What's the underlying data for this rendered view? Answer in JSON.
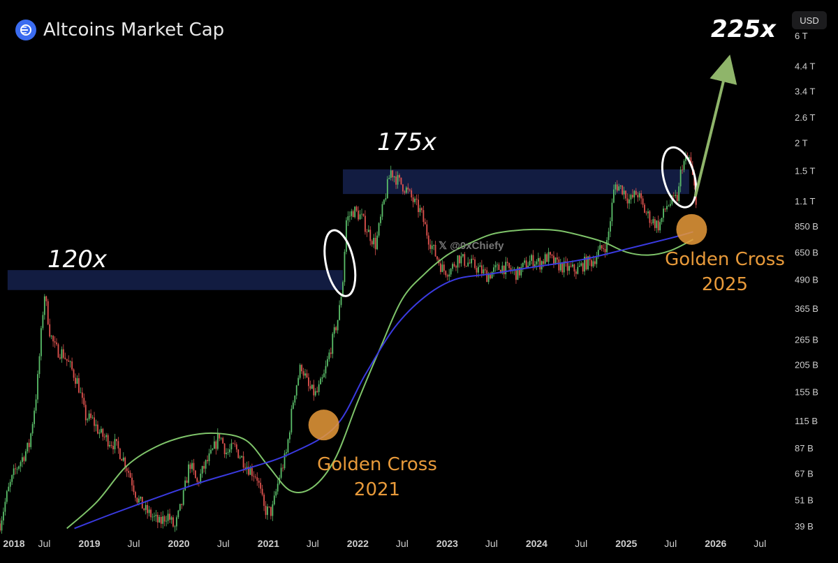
{
  "header": {
    "title": "Altcoins Market Cap",
    "logo_icon": "altcoins-logo-icon"
  },
  "currency_button": {
    "label": "USD"
  },
  "watermark": {
    "icon": "x-logo-icon",
    "text": "𝕏  @0xChiefy"
  },
  "annotations": {
    "multiple_2018": "120x",
    "multiple_2021": "175x",
    "multiple_target": "225x",
    "golden_cross_2021": [
      "Golden Cross",
      "2021"
    ],
    "golden_cross_2025": [
      "Golden Cross",
      "2025"
    ]
  },
  "colors": {
    "background": "#000000",
    "candle_up": "#5bbf6a",
    "candle_down": "#e0534f",
    "ma_short": "#7fc46a",
    "ma_long": "#3a3ae0",
    "resistance_band": "#131d45",
    "golden_cross": "#e89a3a",
    "arrow": "#8fb56a"
  },
  "chart_data": {
    "type": "line",
    "scale": "log",
    "x_tick_labels": [
      "2018",
      "Jul",
      "2019",
      "Jul",
      "2020",
      "Jul",
      "2021",
      "Jul",
      "2022",
      "Jul",
      "2023",
      "Jul",
      "2024",
      "Jul",
      "2025",
      "Jul",
      "2026",
      "Jul"
    ],
    "y_tick_labels": [
      "6 T",
      "4.4 T",
      "3.4 T",
      "2.6 T",
      "2 T",
      "1.5 T",
      "1.1 T",
      "850 B",
      "650 B",
      "490 B",
      "365 B",
      "265 B",
      "205 B",
      "155 B",
      "115 B",
      "87 B",
      "67 B",
      "51 B",
      "39 B"
    ],
    "y_tick_values_usd_b": [
      6000,
      4400,
      3400,
      2600,
      2000,
      1500,
      1100,
      850,
      650,
      490,
      365,
      265,
      205,
      155,
      115,
      87,
      67,
      51,
      39
    ],
    "ylim_usd_b": [
      36,
      6500
    ],
    "xlim": [
      "2018-01-01",
      "2026-09-01"
    ],
    "series": [
      {
        "kind": "price",
        "x": [
          "2018-01-01",
          "2018-02-01",
          "2018-03-01",
          "2018-04-01",
          "2018-05-01",
          "2018-06-01",
          "2018-07-01",
          "2018-07-25",
          "2018-08-15",
          "2018-09-15",
          "2018-10-15",
          "2018-11-15",
          "2018-12-15",
          "2019-01-15",
          "2019-02-15",
          "2019-03-15",
          "2019-04-15",
          "2019-05-15",
          "2019-06-15",
          "2019-07-15",
          "2019-08-15",
          "2019-09-15",
          "2019-10-15",
          "2019-11-15",
          "2019-12-15",
          "2020-01-15",
          "2020-02-15",
          "2020-03-15",
          "2020-04-15",
          "2020-05-15",
          "2020-06-15",
          "2020-07-15",
          "2020-08-15",
          "2020-09-15",
          "2020-10-15",
          "2020-11-15",
          "2020-12-15",
          "2021-01-15",
          "2021-02-15",
          "2021-03-15",
          "2021-04-15",
          "2021-05-15",
          "2021-06-15",
          "2021-07-15",
          "2021-08-15",
          "2021-09-15",
          "2021-10-15",
          "2021-11-01",
          "2021-11-15",
          "2021-12-15",
          "2022-01-15",
          "2022-02-15",
          "2022-03-15",
          "2022-04-15",
          "2022-05-15",
          "2022-06-15",
          "2022-07-15",
          "2022-08-15",
          "2022-09-15",
          "2022-10-15",
          "2022-11-15",
          "2022-12-15",
          "2023-01-15",
          "2023-02-15",
          "2023-03-15",
          "2023-04-15",
          "2023-05-15",
          "2023-06-15",
          "2023-07-15",
          "2023-08-15",
          "2023-09-15",
          "2023-10-15",
          "2023-11-15",
          "2023-12-15",
          "2024-01-15",
          "2024-02-15",
          "2024-03-15",
          "2024-04-15",
          "2024-05-15",
          "2024-06-15",
          "2024-07-15",
          "2024-08-15",
          "2024-09-15",
          "2024-10-15",
          "2024-11-15",
          "2024-12-15",
          "2025-01-15",
          "2025-02-15",
          "2025-03-15",
          "2025-04-15",
          "2025-05-15",
          "2025-06-15",
          "2025-07-15",
          "2025-08-01",
          "2025-08-15",
          "2025-09-15",
          "2025-10-15"
        ],
        "y": [
          40,
          55,
          68,
          78,
          90,
          160,
          430,
          280,
          240,
          230,
          200,
          170,
          120,
          115,
          100,
          95,
          90,
          80,
          66,
          52,
          46,
          43,
          40,
          44,
          38,
          50,
          75,
          60,
          72,
          82,
          100,
          82,
          88,
          78,
          70,
          65,
          46,
          45,
          65,
          82,
          150,
          205,
          160,
          150,
          180,
          250,
          340,
          490,
          900,
          1000,
          930,
          790,
          700,
          1050,
          1500,
          1350,
          1250,
          1100,
          980,
          760,
          630,
          540,
          540,
          620,
          590,
          570,
          540,
          510,
          540,
          560,
          540,
          520,
          570,
          600,
          580,
          620,
          580,
          560,
          545,
          540,
          580,
          590,
          660,
          710,
          1300,
          1250,
          1100,
          1200,
          1000,
          900,
          850,
          1050,
          1100,
          1150,
          1600,
          1700,
          1100
        ]
      },
      {
        "kind": "moving_average_short",
        "x": [
          "2018-10-01",
          "2019-02-01",
          "2019-06-01",
          "2019-10-01",
          "2020-02-01",
          "2020-06-01",
          "2020-10-01",
          "2021-01-01",
          "2021-04-01",
          "2021-07-01",
          "2021-10-01",
          "2022-01-01",
          "2022-04-01",
          "2022-07-01",
          "2022-10-01",
          "2023-01-01",
          "2023-04-01",
          "2023-07-01",
          "2023-10-01",
          "2024-01-01",
          "2024-04-01",
          "2024-07-01",
          "2024-10-01",
          "2025-01-01",
          "2025-04-01",
          "2025-07-01",
          "2025-10-01"
        ],
        "y": [
          38,
          50,
          72,
          88,
          98,
          101,
          94,
          72,
          56,
          58,
          78,
          140,
          240,
          400,
          520,
          630,
          710,
          780,
          810,
          820,
          810,
          770,
          720,
          650,
          630,
          660,
          740
        ]
      },
      {
        "kind": "moving_average_long",
        "x": [
          "2018-11-01",
          "2019-04-01",
          "2019-10-01",
          "2020-04-01",
          "2020-10-01",
          "2021-04-01",
          "2021-10-01",
          "2022-02-01",
          "2022-06-01",
          "2022-10-01",
          "2023-02-01",
          "2023-07-01",
          "2024-01-01",
          "2024-07-01",
          "2025-01-01",
          "2025-07-01",
          "2025-10-01"
        ],
        "y": [
          38,
          44,
          52,
          61,
          70,
          82,
          108,
          185,
          300,
          410,
          490,
          520,
          560,
          600,
          670,
          750,
          800
        ]
      }
    ],
    "annotations_data": [
      {
        "label": "120x",
        "band_usd_b": [
          440,
          540
        ],
        "x_range": [
          "2018-02-01",
          "2021-11-01"
        ]
      },
      {
        "label": "175x",
        "band_usd_b": [
          1180,
          1520
        ],
        "x_range": [
          "2021-11-01",
          "2025-09-15"
        ]
      },
      {
        "label": "Golden Cross 2021",
        "x": "2021-08-15",
        "y_usd_b": 110
      },
      {
        "label": "Golden Cross 2025",
        "x": "2025-09-25",
        "y_usd_b": 820
      },
      {
        "label": "225x",
        "x": "2025-10-01",
        "y_usd_b": 5800
      }
    ]
  }
}
